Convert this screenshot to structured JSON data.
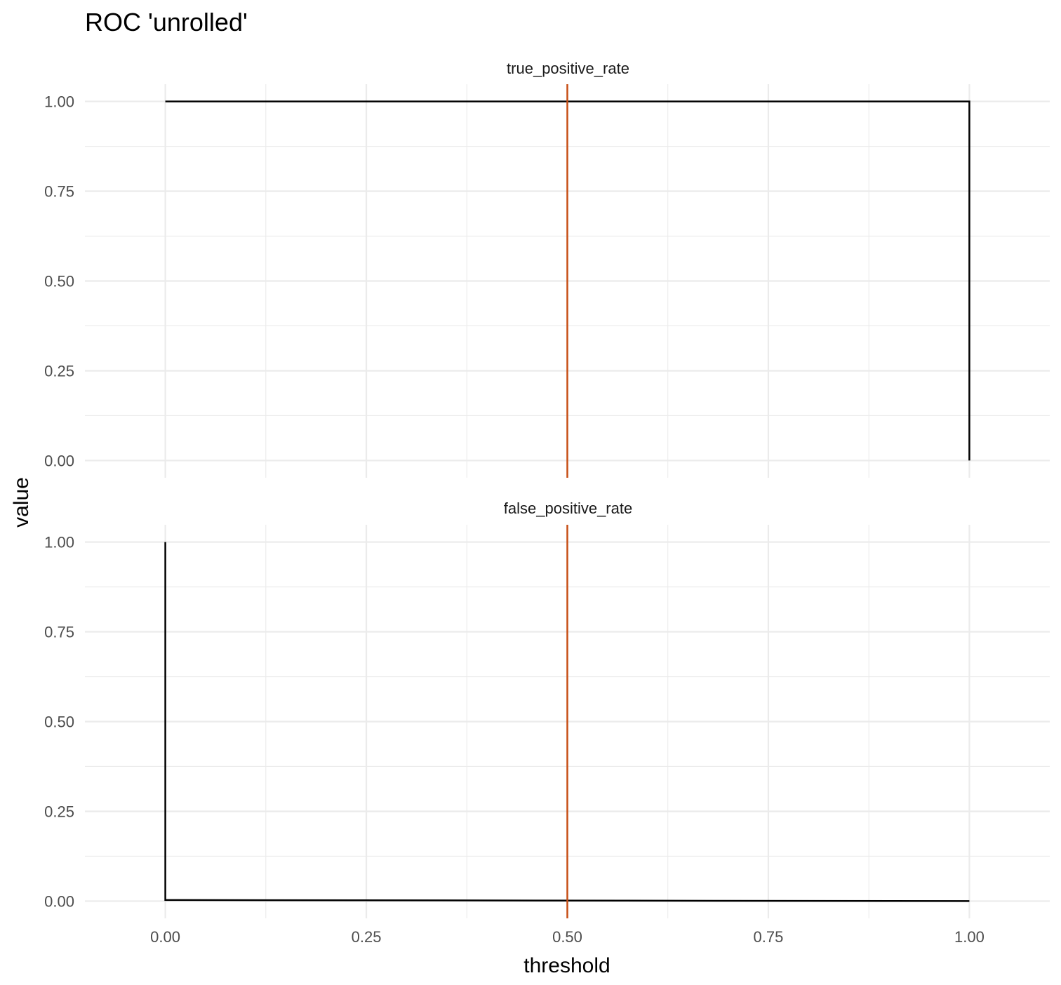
{
  "chart_data": {
    "type": "line",
    "title": "ROC 'unrolled'",
    "xlabel": "threshold",
    "ylabel": "value",
    "xlim": [
      -0.1,
      1.1
    ],
    "x_ticks": [
      "0.00",
      "0.25",
      "0.50",
      "0.75",
      "1.00"
    ],
    "y_ticks": [
      "0.00",
      "0.25",
      "0.50",
      "0.75",
      "1.00"
    ],
    "grid": true,
    "reference_line": {
      "x": 0.5,
      "color": "#c74e14"
    },
    "line_color": "#000000",
    "panels": [
      {
        "label": "true_positive_rate",
        "ylim": [
          -0.048,
          1.048
        ],
        "x": [
          0.0,
          1.0,
          1.0
        ],
        "y": [
          1.0,
          1.0,
          0.0
        ]
      },
      {
        "label": "false_positive_rate",
        "ylim": [
          -0.048,
          1.048
        ],
        "x": [
          0.0,
          0.0,
          1.0
        ],
        "y": [
          1.0,
          0.003,
          0.0
        ]
      }
    ]
  }
}
